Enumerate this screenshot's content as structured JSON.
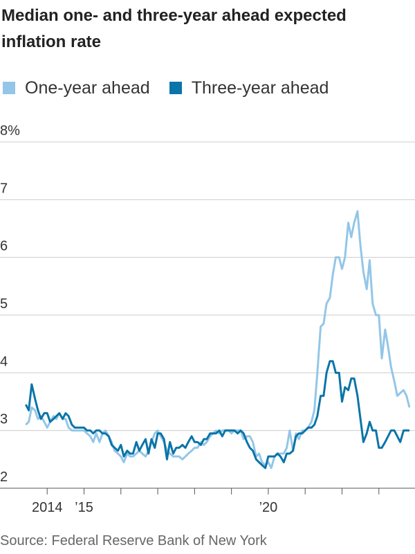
{
  "chart_data": {
    "type": "line",
    "title": "Median one- and three-year ahead expected inflation rate",
    "source": "Source: Federal Reserve Bank of New York",
    "x": [
      2013.42,
      2013.5,
      2013.58,
      2013.67,
      2013.75,
      2013.83,
      2013.92,
      2014,
      2014.08,
      2014.17,
      2014.25,
      2014.33,
      2014.42,
      2014.5,
      2014.58,
      2014.67,
      2014.75,
      2014.83,
      2014.92,
      2015,
      2015.08,
      2015.17,
      2015.25,
      2015.33,
      2015.42,
      2015.5,
      2015.58,
      2015.67,
      2015.75,
      2015.83,
      2015.92,
      2016,
      2016.08,
      2016.17,
      2016.25,
      2016.33,
      2016.42,
      2016.5,
      2016.58,
      2016.67,
      2016.75,
      2016.83,
      2016.92,
      2017,
      2017.08,
      2017.17,
      2017.25,
      2017.33,
      2017.42,
      2017.5,
      2017.58,
      2017.67,
      2017.75,
      2017.83,
      2017.92,
      2018,
      2018.08,
      2018.17,
      2018.25,
      2018.33,
      2018.42,
      2018.5,
      2018.58,
      2018.67,
      2018.75,
      2018.83,
      2018.92,
      2019,
      2019.08,
      2019.17,
      2019.25,
      2019.33,
      2019.42,
      2019.5,
      2019.58,
      2019.67,
      2019.75,
      2019.83,
      2019.92,
      2020,
      2020.08,
      2020.17,
      2020.25,
      2020.33,
      2020.42,
      2020.5,
      2020.58,
      2020.67,
      2020.75,
      2020.83,
      2020.92,
      2021,
      2021.08,
      2021.17,
      2021.25,
      2021.33,
      2021.42,
      2021.5,
      2021.58,
      2021.67,
      2021.75,
      2021.83,
      2021.92,
      2022,
      2022.08,
      2022.17,
      2022.25,
      2022.33,
      2022.42,
      2022.5,
      2022.58,
      2022.67,
      2022.75,
      2022.83,
      2022.92,
      2023,
      2023.08,
      2023.17,
      2023.25,
      2023.33,
      2023.42,
      2023.5,
      2023.58,
      2023.67,
      2023.75,
      2023.83
    ],
    "series": [
      {
        "name": "One-year ahead",
        "color": "#93c6e8",
        "values": [
          3.1,
          3.15,
          3.4,
          3.35,
          3.2,
          3.25,
          3.15,
          3.05,
          3.15,
          3.25,
          3.2,
          3.3,
          3.2,
          3.2,
          3.05,
          3.0,
          3.0,
          3.0,
          3.0,
          3.0,
          2.95,
          2.9,
          2.8,
          2.95,
          2.8,
          2.95,
          3.0,
          2.9,
          2.8,
          2.65,
          2.6,
          2.55,
          2.45,
          2.6,
          2.55,
          2.55,
          2.6,
          2.65,
          2.6,
          2.55,
          2.65,
          2.8,
          2.95,
          3.0,
          2.9,
          2.8,
          2.65,
          2.6,
          2.55,
          2.55,
          2.55,
          2.5,
          2.55,
          2.6,
          2.65,
          2.7,
          2.7,
          2.8,
          2.75,
          2.8,
          2.9,
          2.95,
          3.0,
          2.95,
          3.0,
          3.0,
          3.0,
          2.95,
          3.0,
          3.0,
          3.0,
          2.85,
          2.9,
          2.9,
          2.8,
          2.55,
          2.6,
          2.45,
          2.4,
          2.45,
          2.35,
          2.55,
          2.6,
          2.6,
          2.6,
          2.7,
          3.0,
          2.65,
          2.95,
          2.85,
          3.0,
          3.0,
          3.05,
          3.15,
          3.35,
          4.0,
          4.8,
          4.85,
          5.2,
          5.3,
          5.7,
          6.0,
          6.0,
          5.8,
          6.0,
          6.6,
          6.35,
          6.6,
          6.8,
          6.2,
          5.75,
          5.45,
          5.95,
          5.2,
          5.0,
          5.0,
          4.25,
          4.75,
          4.45,
          4.1,
          3.85,
          3.6,
          3.65,
          3.7,
          3.6,
          3.4
        ]
      },
      {
        "name": "Three-year ahead",
        "color": "#0b74a8",
        "values": [
          3.45,
          3.35,
          3.8,
          3.55,
          3.35,
          3.2,
          3.3,
          3.3,
          3.15,
          3.2,
          3.25,
          3.3,
          3.2,
          3.3,
          3.25,
          3.1,
          3.05,
          3.05,
          3.05,
          3.05,
          3.0,
          3.0,
          2.95,
          3.0,
          3.0,
          2.95,
          2.95,
          2.9,
          2.75,
          2.7,
          2.65,
          2.75,
          2.55,
          2.65,
          2.6,
          2.6,
          2.8,
          2.65,
          2.75,
          2.85,
          2.6,
          2.85,
          2.7,
          2.95,
          2.95,
          2.85,
          2.5,
          2.8,
          2.6,
          2.7,
          2.7,
          2.75,
          2.7,
          2.8,
          2.9,
          2.8,
          2.8,
          2.75,
          2.85,
          2.85,
          2.95,
          2.95,
          2.95,
          3.0,
          2.9,
          3.0,
          3.0,
          3.0,
          3.0,
          2.95,
          3.0,
          2.95,
          2.8,
          2.7,
          2.65,
          2.5,
          2.45,
          2.4,
          2.35,
          2.55,
          2.55,
          2.55,
          2.6,
          2.55,
          2.45,
          2.6,
          2.6,
          2.65,
          2.9,
          2.95,
          2.95,
          3.0,
          3.05,
          3.05,
          3.1,
          3.25,
          3.6,
          3.6,
          4.0,
          4.2,
          4.2,
          4.0,
          4.0,
          3.5,
          3.75,
          3.7,
          3.9,
          3.9,
          3.6,
          3.2,
          2.8,
          2.95,
          3.15,
          3.0,
          3.0,
          2.7,
          2.7,
          2.8,
          2.9,
          3.0,
          3.0,
          2.9,
          2.8,
          3.0,
          3.0,
          3.0
        ]
      }
    ],
    "xlim": [
      2012.72,
      2023.98
    ],
    "xticks": [
      {
        "value": 2014,
        "label": "2014"
      },
      {
        "value": 2015,
        "label": "’15"
      },
      {
        "value": 2016,
        "label": null
      },
      {
        "value": 2017,
        "label": null
      },
      {
        "value": 2018,
        "label": null
      },
      {
        "value": 2019,
        "label": null
      },
      {
        "value": 2020,
        "label": "’20"
      },
      {
        "value": 2021,
        "label": null
      },
      {
        "value": 2022,
        "label": null
      },
      {
        "value": 2023,
        "label": null
      }
    ],
    "ylim": [
      2,
      8
    ],
    "yticks": [
      2,
      3,
      4,
      5,
      6,
      7,
      {
        "value": 8,
        "label": "8%"
      }
    ],
    "grid": true,
    "legend": "top"
  }
}
